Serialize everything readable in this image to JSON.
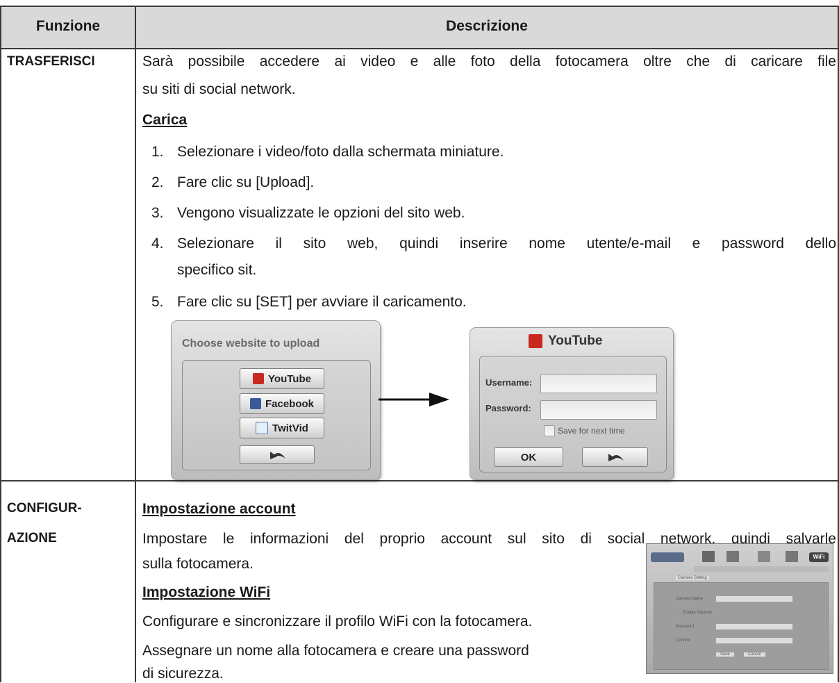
{
  "table": {
    "header": [
      "Funzione",
      "Descrizione"
    ],
    "rows": [
      {
        "function": [
          "TRASFERISCI"
        ],
        "intro": [
          "Sarà possibile accedere ai video e alle foto della fotocamera oltre che di caricare file",
          "su siti di social network."
        ],
        "section": "Carica",
        "steps": [
          {
            "number": "1.",
            "lines": [
              "Selezionare i video/foto dalla schermata miniature."
            ]
          },
          {
            "number": "2.",
            "lines": [
              "Fare clic su [Upload]."
            ]
          },
          {
            "number": "3.",
            "lines": [
              "Vengono visualizzate le opzioni del sito web."
            ]
          },
          {
            "number": "4.",
            "lines": [
              "Selezionare il sito web, quindi inserire nome utente/e-mail e password dello",
              "specifico sit."
            ]
          },
          {
            "number": "5.",
            "lines": [
              "Fare clic su [SET] per avviare il caricamento."
            ]
          }
        ],
        "dialogs": {
          "choose": {
            "title": "Choose website to upload",
            "buttons": [
              "YouTube",
              "Facebook",
              "TwitVid"
            ]
          },
          "login": {
            "title": "YouTube",
            "username": "Username:",
            "password": "Password:",
            "remember": "Save for next time",
            "ok": "OK"
          }
        }
      },
      {
        "function": [
          "CONFIGUR-",
          "AZIONE"
        ],
        "sections": [
          {
            "title": "Impostazione account",
            "lines": [
              "Impostare le informazioni del proprio account sul sito di social network, quindi salvarle",
              "sulla fotocamera."
            ]
          },
          {
            "title": "Impostazione WiFi",
            "paragraphs": [
              [
                "Configurare e sincronizzare il profilo WiFi con la fotocamera."
              ],
              [
                "Assegnare un nome alla fotocamera e creare una password",
                "di sicurezza."
              ]
            ]
          }
        ],
        "screenshot": {
          "tab": "Camera Setting",
          "fields": [
            "Camera Name",
            "Enable Security",
            "Password",
            "Confirm"
          ],
          "buttons": [
            "Save",
            "Cancel"
          ],
          "badge": "WiFi"
        }
      }
    ]
  }
}
